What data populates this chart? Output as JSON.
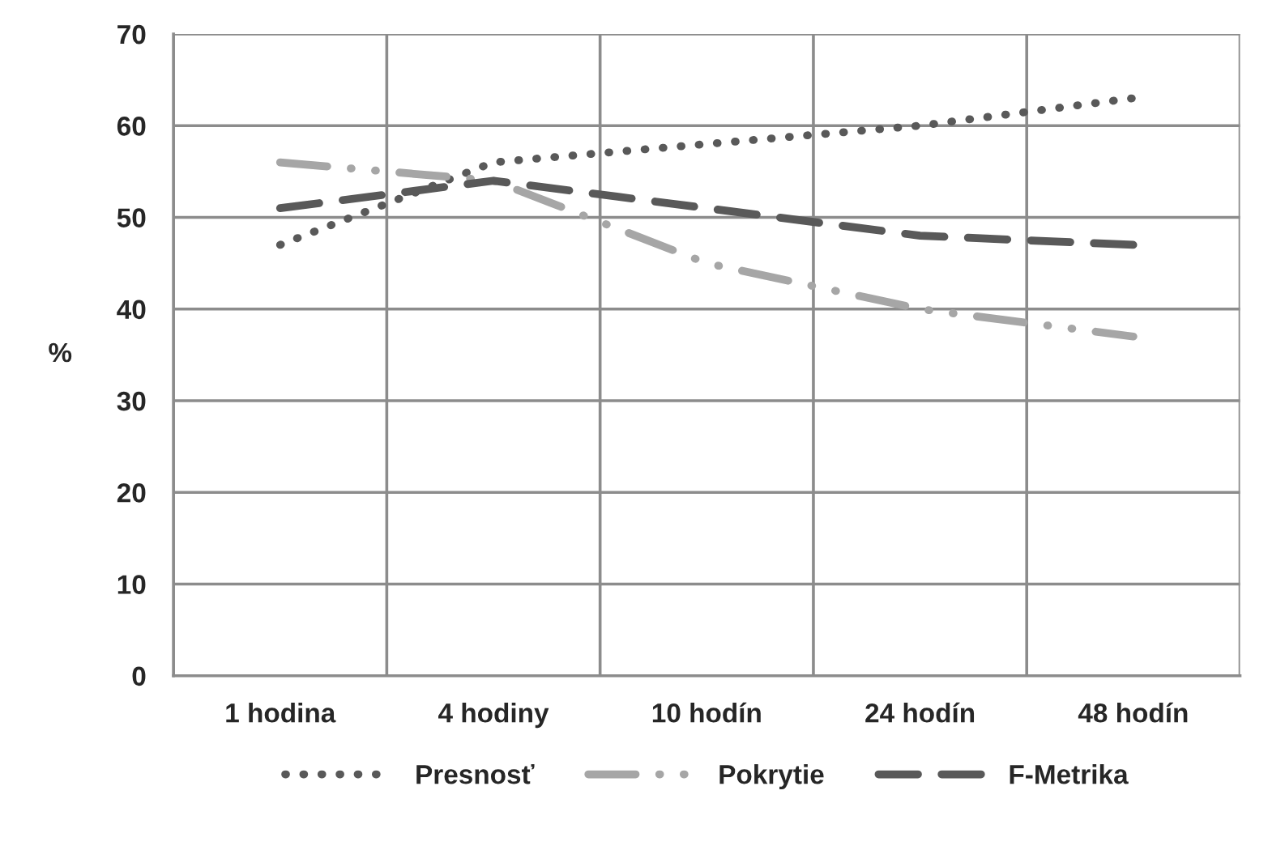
{
  "chart_data": {
    "type": "line",
    "ylabel": "%",
    "categories": [
      "1 hodina",
      "4 hodiny",
      "10 hodín",
      "24 hodín",
      "48 hodín"
    ],
    "series": [
      {
        "name": "Presnosť",
        "color": "#595959",
        "line_style": "dotted",
        "values": [
          47,
          56,
          58,
          60,
          63
        ]
      },
      {
        "name": "Pokrytie",
        "color": "#a6a6a6",
        "line_style": "dashdot",
        "values": [
          56,
          54,
          45,
          40,
          37
        ]
      },
      {
        "name": "F-Metrika",
        "color": "#595959",
        "line_style": "dashed",
        "values": [
          51,
          54,
          51,
          48,
          47
        ]
      }
    ],
    "ylim": [
      0,
      70
    ],
    "yticks": [
      0,
      10,
      20,
      30,
      40,
      50,
      60,
      70
    ],
    "grid": true,
    "legend": "bottom",
    "marker": "none"
  }
}
